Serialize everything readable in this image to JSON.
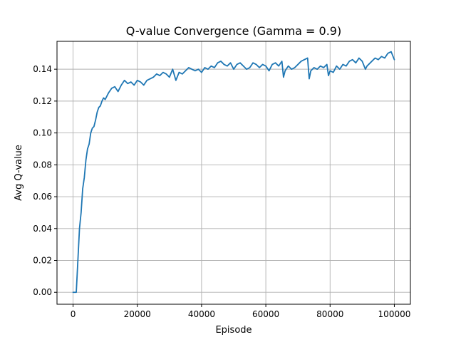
{
  "chart_data": {
    "type": "line",
    "title": "Q-value Convergence (Gamma = 0.9)",
    "xlabel": "Episode",
    "ylabel": "Avg Q-value",
    "xlim": [
      -5000,
      105000
    ],
    "ylim": [
      -0.0075,
      0.1575
    ],
    "xticks": [
      0,
      20000,
      40000,
      60000,
      80000,
      100000
    ],
    "xtick_labels": [
      "0",
      "20000",
      "40000",
      "60000",
      "80000",
      "100000"
    ],
    "yticks": [
      0.0,
      0.02,
      0.04,
      0.06,
      0.08,
      0.1,
      0.12,
      0.14
    ],
    "ytick_labels": [
      "0.00",
      "0.02",
      "0.04",
      "0.06",
      "0.08",
      "0.10",
      "0.12",
      "0.14"
    ],
    "grid": true,
    "series": [
      {
        "color": "#1f77b4",
        "x": [
          0,
          1000,
          1500,
          2000,
          2500,
          3000,
          3500,
          4000,
          4500,
          5000,
          5500,
          6000,
          6500,
          7000,
          7500,
          8000,
          8500,
          9000,
          9500,
          10000,
          11000,
          12000,
          13000,
          14000,
          15000,
          16000,
          17000,
          18000,
          19000,
          20000,
          21000,
          22000,
          23000,
          24000,
          25000,
          26000,
          27000,
          28000,
          29000,
          30000,
          31000,
          32000,
          33000,
          34000,
          35000,
          36000,
          37000,
          38000,
          39000,
          40000,
          41000,
          42000,
          43000,
          44000,
          45000,
          46000,
          47000,
          48000,
          49000,
          50000,
          51000,
          52000,
          53000,
          54000,
          55000,
          56000,
          57000,
          58000,
          59000,
          60000,
          61000,
          62000,
          63000,
          64000,
          65000,
          65500,
          66000,
          67000,
          68000,
          69000,
          70000,
          71000,
          72000,
          73000,
          73500,
          74000,
          75000,
          76000,
          77000,
          78000,
          79000,
          79500,
          80000,
          81000,
          82000,
          83000,
          84000,
          85000,
          86000,
          87000,
          88000,
          89000,
          90000,
          91000,
          91500,
          92000,
          93000,
          94000,
          95000,
          96000,
          97000,
          98000,
          99000,
          100000
        ],
        "y": [
          0.0,
          0.0,
          0.02,
          0.04,
          0.05,
          0.065,
          0.072,
          0.083,
          0.09,
          0.093,
          0.1,
          0.103,
          0.104,
          0.108,
          0.113,
          0.116,
          0.117,
          0.12,
          0.122,
          0.121,
          0.125,
          0.128,
          0.129,
          0.126,
          0.13,
          0.133,
          0.131,
          0.132,
          0.13,
          0.133,
          0.132,
          0.13,
          0.133,
          0.134,
          0.135,
          0.137,
          0.136,
          0.138,
          0.137,
          0.135,
          0.14,
          0.133,
          0.138,
          0.137,
          0.139,
          0.141,
          0.14,
          0.139,
          0.14,
          0.138,
          0.141,
          0.14,
          0.142,
          0.141,
          0.144,
          0.145,
          0.143,
          0.142,
          0.144,
          0.14,
          0.143,
          0.144,
          0.142,
          0.14,
          0.141,
          0.144,
          0.143,
          0.141,
          0.143,
          0.142,
          0.139,
          0.143,
          0.144,
          0.142,
          0.145,
          0.135,
          0.139,
          0.142,
          0.14,
          0.141,
          0.143,
          0.145,
          0.146,
          0.147,
          0.134,
          0.139,
          0.141,
          0.14,
          0.142,
          0.141,
          0.143,
          0.136,
          0.139,
          0.138,
          0.142,
          0.14,
          0.143,
          0.142,
          0.145,
          0.146,
          0.144,
          0.147,
          0.145,
          0.14,
          0.142,
          0.143,
          0.145,
          0.147,
          0.146,
          0.148,
          0.147,
          0.15,
          0.151,
          0.146
        ]
      }
    ]
  }
}
